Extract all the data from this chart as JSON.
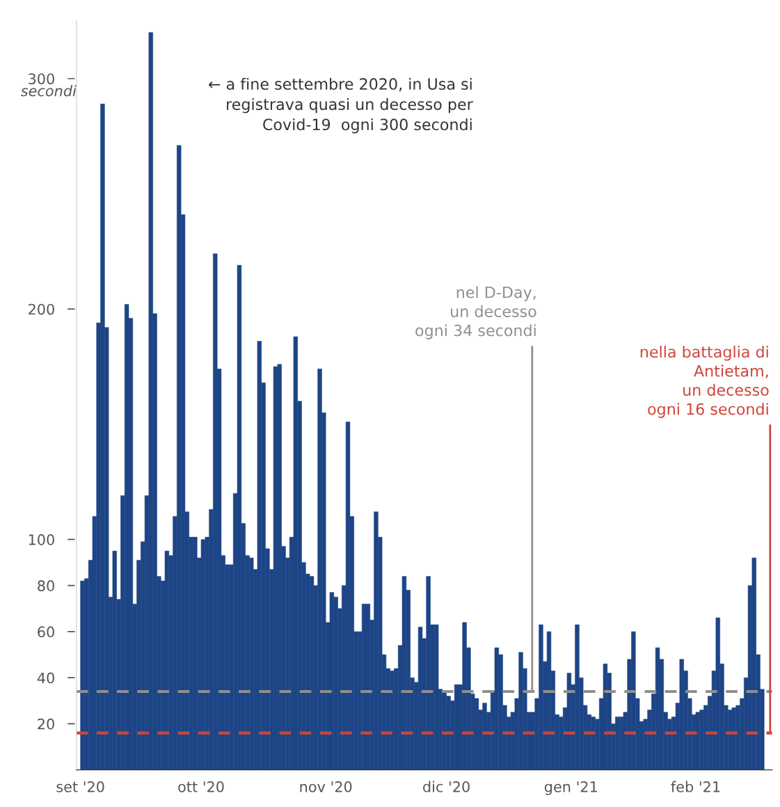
{
  "chart_data": {
    "type": "bar",
    "annotations": [
      "← a fine settembre 2020, in Usa si\nregistrava quasi un decesso per\nCovid-19  ogni 300 secondi"
    ],
    "ylabel": "secondi",
    "x": [
      "2020-09-01",
      "2020-09-02",
      "2020-09-03",
      "2020-09-04",
      "2020-09-05",
      "2020-09-06",
      "2020-09-07",
      "2020-09-08",
      "2020-09-09",
      "2020-09-10",
      "2020-09-11",
      "2020-09-12",
      "2020-09-13",
      "2020-09-14",
      "2020-09-15",
      "2020-09-16",
      "2020-09-17",
      "2020-09-18",
      "2020-09-19",
      "2020-09-20",
      "2020-09-21",
      "2020-09-22",
      "2020-09-23",
      "2020-09-24",
      "2020-09-25",
      "2020-09-26",
      "2020-09-27",
      "2020-09-28",
      "2020-09-29",
      "2020-09-30",
      "2020-10-01",
      "2020-10-02",
      "2020-10-03",
      "2020-10-04",
      "2020-10-05",
      "2020-10-06",
      "2020-10-07",
      "2020-10-08",
      "2020-10-09",
      "2020-10-10",
      "2020-10-11",
      "2020-10-12",
      "2020-10-13",
      "2020-10-14",
      "2020-10-15",
      "2020-10-16",
      "2020-10-17",
      "2020-10-18",
      "2020-10-19",
      "2020-10-20",
      "2020-10-21",
      "2020-10-22",
      "2020-10-23",
      "2020-10-24",
      "2020-10-25",
      "2020-10-26",
      "2020-10-27",
      "2020-10-28",
      "2020-10-29",
      "2020-10-30",
      "2020-10-31",
      "2020-11-01",
      "2020-11-02",
      "2020-11-03",
      "2020-11-04",
      "2020-11-05",
      "2020-11-06",
      "2020-11-07",
      "2020-11-08",
      "2020-11-09",
      "2020-11-10",
      "2020-11-11",
      "2020-11-12",
      "2020-11-13",
      "2020-11-14",
      "2020-11-15",
      "2020-11-16",
      "2020-11-17",
      "2020-11-18",
      "2020-11-19",
      "2020-11-20",
      "2020-11-21",
      "2020-11-22",
      "2020-11-23",
      "2020-11-24",
      "2020-11-25",
      "2020-11-26",
      "2020-11-27",
      "2020-11-28",
      "2020-11-29",
      "2020-11-30",
      "2020-12-01",
      "2020-12-02",
      "2020-12-03",
      "2020-12-04",
      "2020-12-05",
      "2020-12-06",
      "2020-12-07",
      "2020-12-08",
      "2020-12-09",
      "2020-12-10",
      "2020-12-11",
      "2020-12-12",
      "2020-12-13",
      "2020-12-14",
      "2020-12-15",
      "2020-12-16",
      "2020-12-17",
      "2020-12-18",
      "2020-12-19",
      "2020-12-20",
      "2020-12-21",
      "2020-12-22",
      "2020-12-23",
      "2020-12-24",
      "2020-12-25",
      "2020-12-26",
      "2020-12-27",
      "2020-12-28",
      "2020-12-29",
      "2020-12-30",
      "2020-12-31",
      "2021-01-01",
      "2021-01-02",
      "2021-01-03",
      "2021-01-04",
      "2021-01-05",
      "2021-01-06",
      "2021-01-07",
      "2021-01-08",
      "2021-01-09",
      "2021-01-10",
      "2021-01-11",
      "2021-01-12",
      "2021-01-13",
      "2021-01-14",
      "2021-01-15",
      "2021-01-16",
      "2021-01-17",
      "2021-01-18",
      "2021-01-19",
      "2021-01-20",
      "2021-01-21",
      "2021-01-22",
      "2021-01-23",
      "2021-01-24",
      "2021-01-25",
      "2021-01-26",
      "2021-01-27",
      "2021-01-28",
      "2021-01-29",
      "2021-01-30",
      "2021-01-31",
      "2021-02-01",
      "2021-02-02",
      "2021-02-03",
      "2021-02-04",
      "2021-02-05",
      "2021-02-06",
      "2021-02-07",
      "2021-02-08",
      "2021-02-09",
      "2021-02-10",
      "2021-02-11",
      "2021-02-12",
      "2021-02-13",
      "2021-02-14",
      "2021-02-15",
      "2021-02-16",
      "2021-02-17"
    ],
    "values": [
      82,
      83,
      91,
      110,
      194,
      289,
      192,
      75,
      95,
      74,
      119,
      202,
      196,
      72,
      91,
      99,
      119,
      320,
      198,
      84,
      82,
      95,
      93,
      110,
      271,
      241,
      112,
      101,
      101,
      92,
      100,
      101,
      113,
      224,
      174,
      93,
      89,
      89,
      120,
      219,
      107,
      93,
      92,
      87,
      186,
      168,
      96,
      87,
      175,
      176,
      97,
      92,
      101,
      188,
      160,
      90,
      85,
      84,
      80,
      174,
      155,
      64,
      77,
      75,
      70,
      80,
      151,
      110,
      60,
      60,
      72,
      72,
      65,
      112,
      101,
      50,
      44,
      43,
      44,
      54,
      84,
      78,
      40,
      38,
      62,
      57,
      84,
      63,
      63,
      35,
      34,
      32,
      30,
      37,
      37,
      64,
      53,
      33,
      31,
      26,
      29,
      25,
      34,
      53,
      50,
      28,
      23,
      25,
      31,
      51,
      44,
      25,
      25,
      31,
      63,
      47,
      60,
      43,
      24,
      23,
      27,
      42,
      37,
      63,
      40,
      28,
      24,
      23,
      22,
      31,
      46,
      42,
      20,
      23,
      23,
      25,
      48,
      60,
      31,
      21,
      22,
      26,
      33,
      53,
      48,
      25,
      22,
      23,
      29,
      48,
      43,
      31,
      24,
      25,
      26,
      28,
      32,
      43,
      66,
      46,
      28,
      26,
      27,
      28,
      31,
      40,
      80,
      92,
      50,
      35
    ],
    "color": "#1d4586",
    "xlim": [
      "2020-08-31",
      "2021-02-20"
    ],
    "xticks": [
      {
        "value": "2020-09-01",
        "label": "set '20"
      },
      {
        "value": "2020-10-01",
        "label": "ott '20"
      },
      {
        "value": "2020-11-01",
        "label": "nov '20"
      },
      {
        "value": "2020-12-01",
        "label": "dic '20"
      },
      {
        "value": "2021-01-01",
        "label": "gen '21"
      },
      {
        "value": "2021-02-01",
        "label": "feb '21"
      }
    ],
    "ylim": [
      0,
      325
    ],
    "yticks": [
      20,
      40,
      60,
      80,
      100,
      200,
      300
    ],
    "ref_lines": [
      {
        "axis": "y",
        "value": 34,
        "label": "nel D-Day,\nun decesso\nogni 34 secondi",
        "color": "#8f8f8f",
        "line_style": "dashed"
      },
      {
        "axis": "y",
        "value": 16,
        "label": "nella battaglia di\nAntietam,\nun decesso\nogni 16 secondi",
        "color": "#d0453a",
        "line_style": "dashed"
      }
    ],
    "grid": false
  }
}
